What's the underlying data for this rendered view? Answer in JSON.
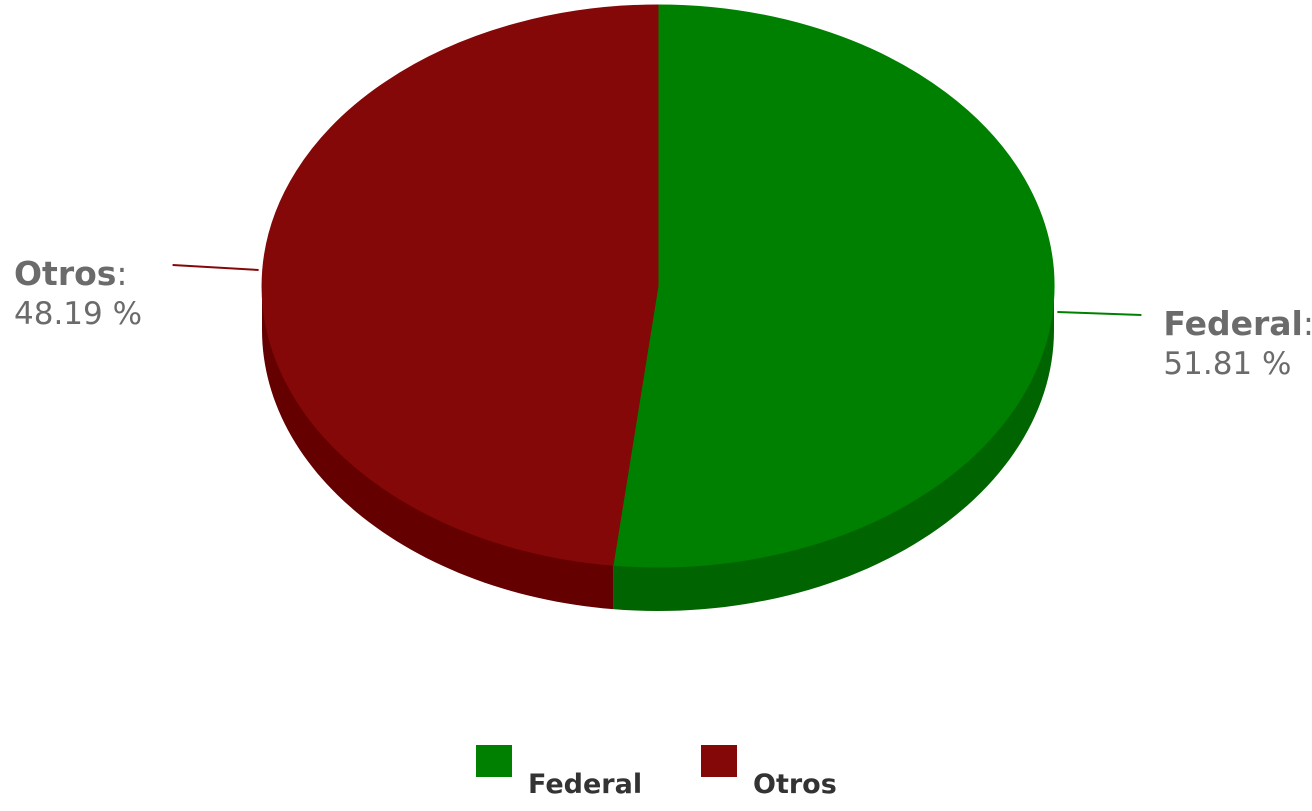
{
  "chart_data": {
    "type": "pie",
    "title": "",
    "three_d": true,
    "legend_position": "bottom",
    "slices": [
      {
        "name": "Federal",
        "value": 51.81,
        "label_value": "51.81 %",
        "color": "#008000",
        "side_color": "#006400"
      },
      {
        "name": "Otros",
        "value": 48.19,
        "label_value": "48.19 %",
        "color": "#850808",
        "side_color": "#640000"
      }
    ],
    "label_separator": ":"
  }
}
